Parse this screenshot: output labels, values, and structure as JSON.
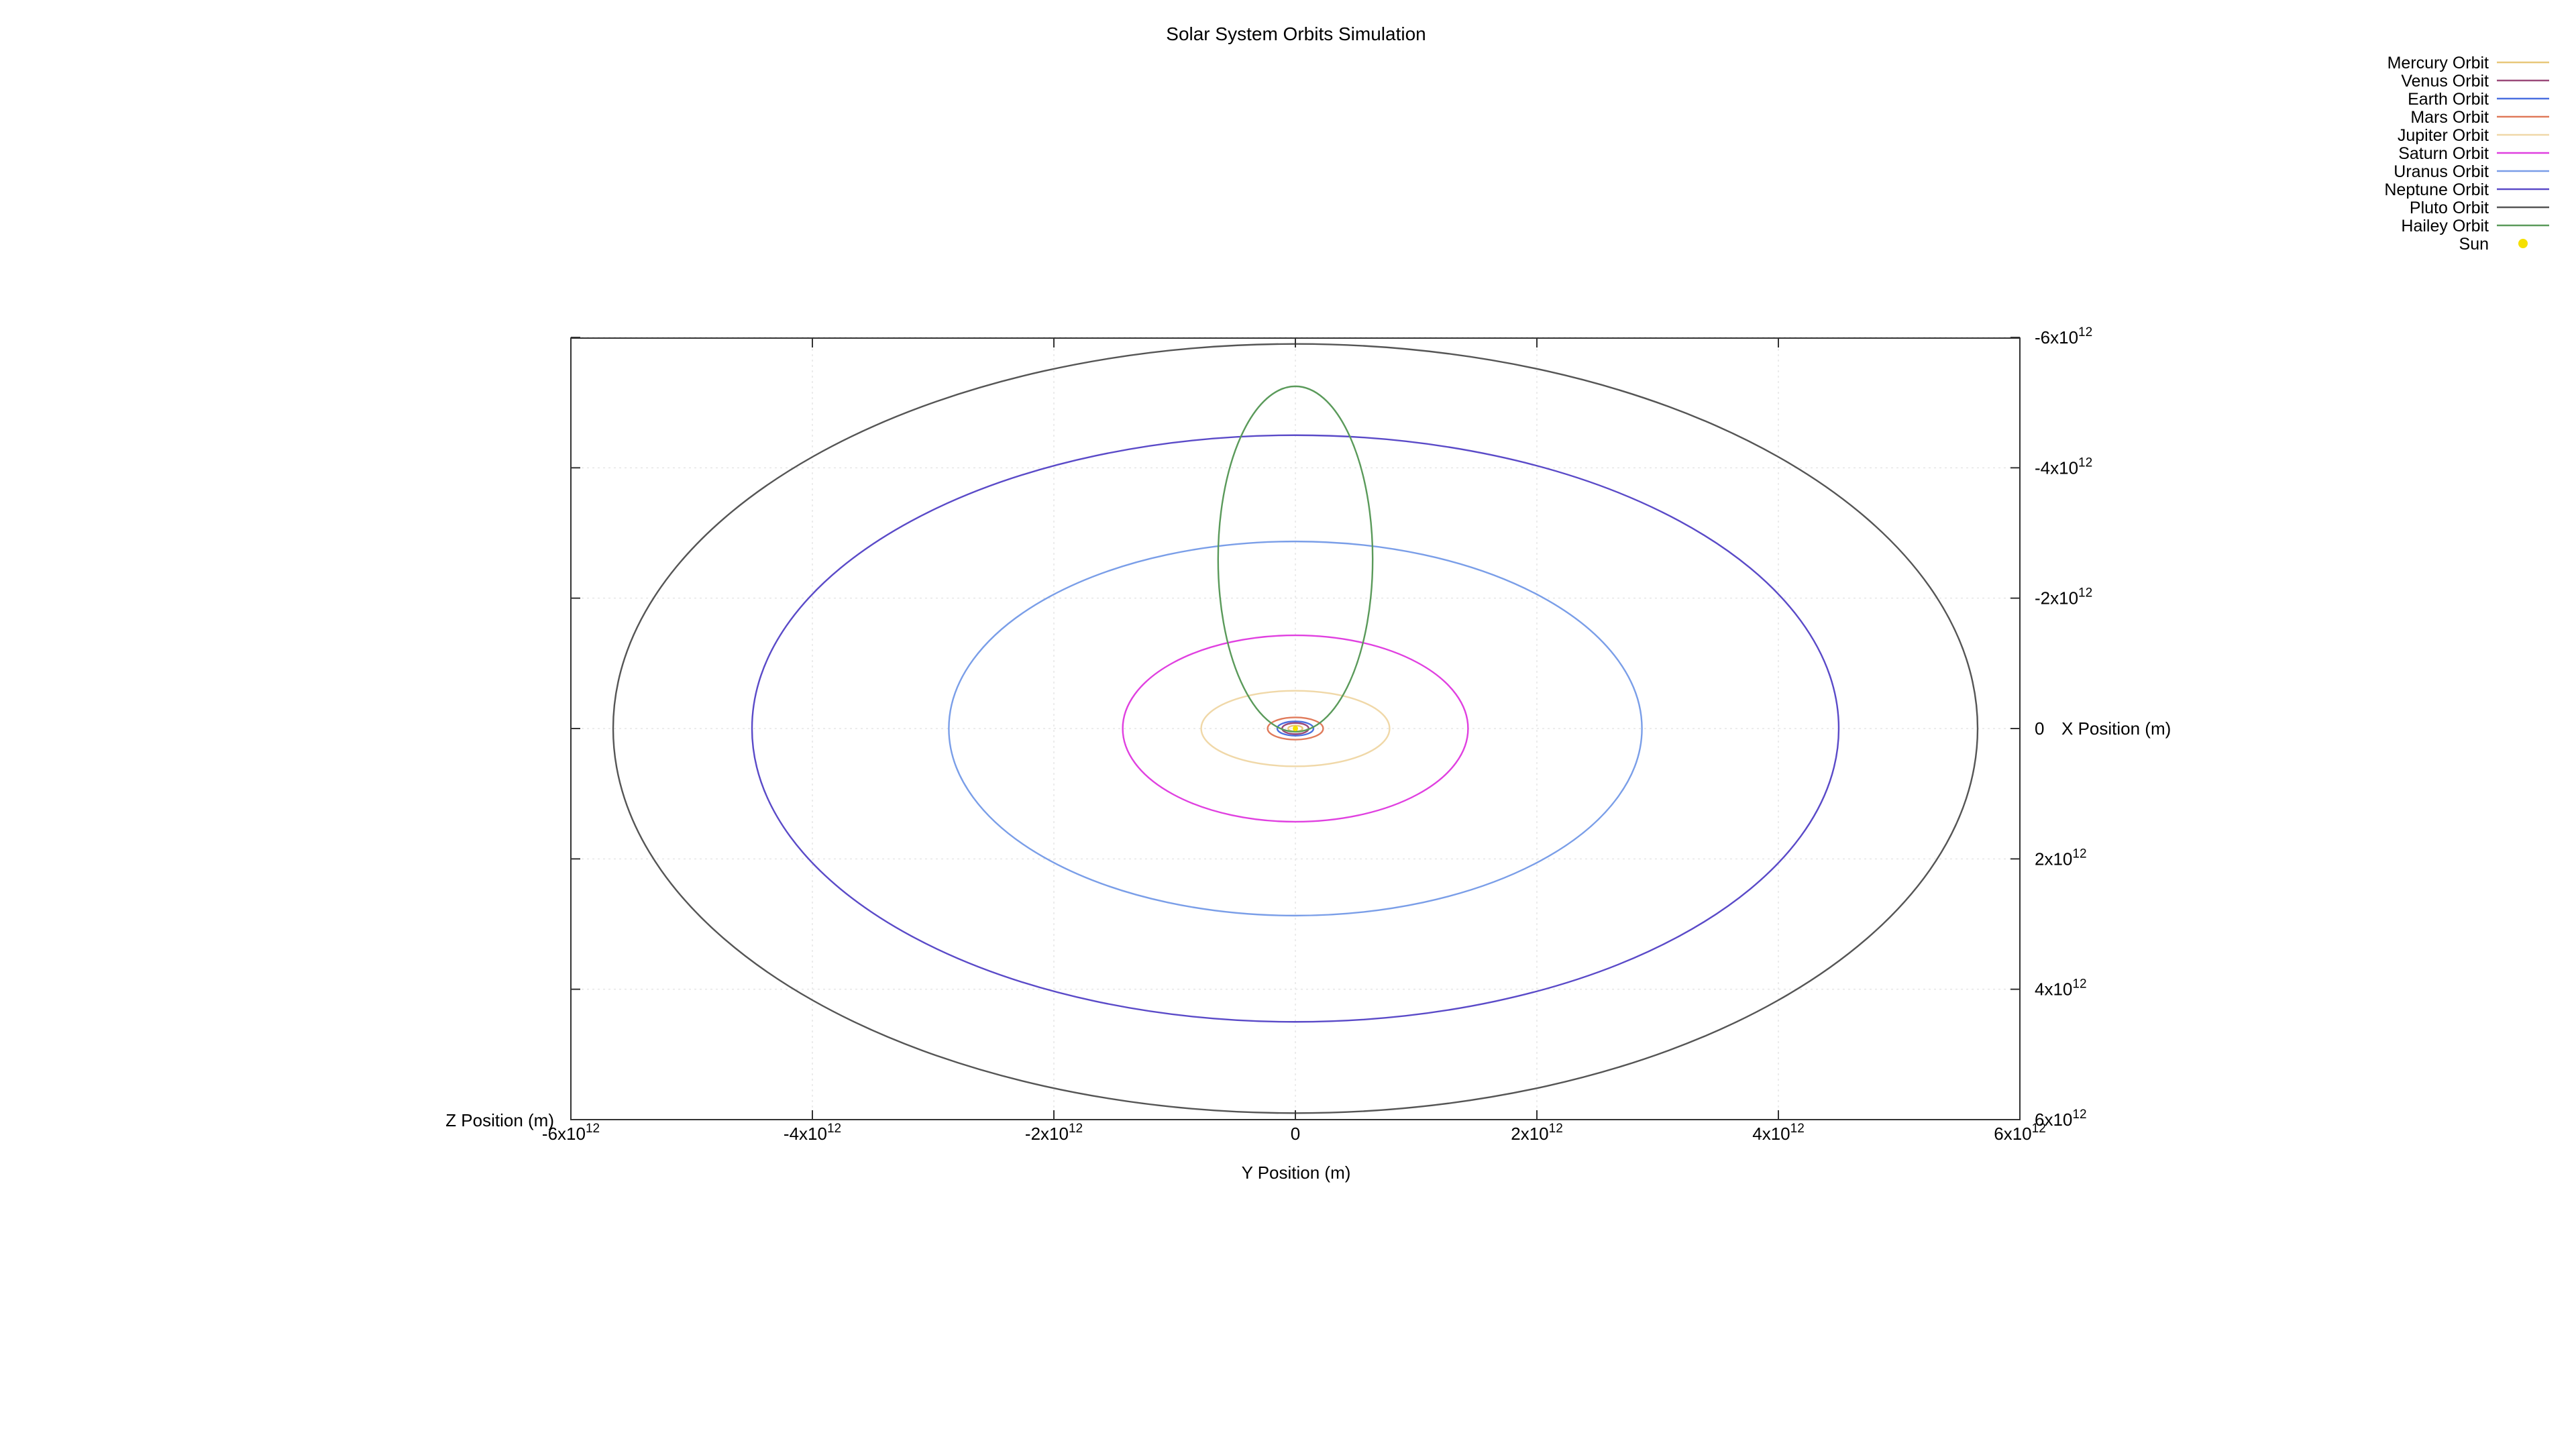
{
  "chart_data": {
    "type": "line",
    "title": "Solar System Orbits Simulation",
    "xlabel": "Y Position (m)",
    "ylabel": "X Position (m)",
    "zlabel": "Z Position (m)",
    "xlim": [
      -6000000000000.0,
      6000000000000.0
    ],
    "ylim": [
      6000000000000.0,
      -6000000000000.0
    ],
    "grid": true,
    "legend_position": "top-right",
    "x_ticks": [
      {
        "value": -6000000000000.0,
        "base": "-6x10",
        "exp": "12"
      },
      {
        "value": -4000000000000.0,
        "base": "-4x10",
        "exp": "12"
      },
      {
        "value": -2000000000000.0,
        "base": "-2x10",
        "exp": "12"
      },
      {
        "value": 0,
        "base": "0",
        "exp": ""
      },
      {
        "value": 2000000000000.0,
        "base": "2x10",
        "exp": "12"
      },
      {
        "value": 4000000000000.0,
        "base": "4x10",
        "exp": "12"
      },
      {
        "value": 6000000000000.0,
        "base": "6x10",
        "exp": "12"
      }
    ],
    "y_ticks": [
      {
        "value": -6000000000000.0,
        "base": "-6x10",
        "exp": "12"
      },
      {
        "value": -4000000000000.0,
        "base": "-4x10",
        "exp": "12"
      },
      {
        "value": -2000000000000.0,
        "base": "-2x10",
        "exp": "12"
      },
      {
        "value": 0,
        "base": "0",
        "exp": ""
      },
      {
        "value": 2000000000000.0,
        "base": "2x10",
        "exp": "12"
      },
      {
        "value": 4000000000000.0,
        "base": "4x10",
        "exp": "12"
      },
      {
        "value": 6000000000000.0,
        "base": "6x10",
        "exp": "12"
      }
    ],
    "series": [
      {
        "name": "Mercury Orbit",
        "color": "#e8c87a",
        "center": [
          0,
          0
        ],
        "semi_axes": [
          60000000000.0,
          45000000000.0
        ]
      },
      {
        "name": "Venus Orbit",
        "color": "#9b4a7a",
        "center": [
          0,
          0
        ],
        "semi_axes": [
          110000000000.0,
          85000000000.0
        ]
      },
      {
        "name": "Earth Orbit",
        "color": "#4a6fe0",
        "center": [
          0,
          0
        ],
        "semi_axes": [
          150000000000.0,
          110000000000.0
        ]
      },
      {
        "name": "Mars Orbit",
        "color": "#e07a5a",
        "center": [
          0,
          0
        ],
        "semi_axes": [
          230000000000.0,
          170000000000.0
        ]
      },
      {
        "name": "Jupiter Orbit",
        "color": "#f0d8a8",
        "center": [
          0,
          0
        ],
        "semi_axes": [
          780000000000.0,
          580000000000.0
        ]
      },
      {
        "name": "Saturn Orbit",
        "color": "#e040e0",
        "center": [
          0,
          0
        ],
        "semi_axes": [
          1430000000000.0,
          1430000000000.0
        ]
      },
      {
        "name": "Uranus Orbit",
        "color": "#7a9ee8",
        "center": [
          0,
          0
        ],
        "semi_axes": [
          2870000000000.0,
          2870000000000.0
        ]
      },
      {
        "name": "Neptune Orbit",
        "color": "#5a4ac8",
        "center": [
          0,
          0
        ],
        "semi_axes": [
          4500000000000.0,
          4500000000000.0
        ]
      },
      {
        "name": "Pluto Orbit",
        "color": "#555555",
        "center": [
          0,
          0
        ],
        "semi_axes": [
          5650000000000.0,
          5900000000000.0
        ]
      },
      {
        "name": "Hailey Orbit",
        "color": "#5a9a5a",
        "center": [
          0,
          -2600000000000.0
        ],
        "semi_axes": [
          640000000000.0,
          2650000000000.0
        ]
      },
      {
        "name": "Sun",
        "color": "#f5e000",
        "marker": "point",
        "points": [
          [
            0,
            0
          ]
        ]
      }
    ]
  }
}
